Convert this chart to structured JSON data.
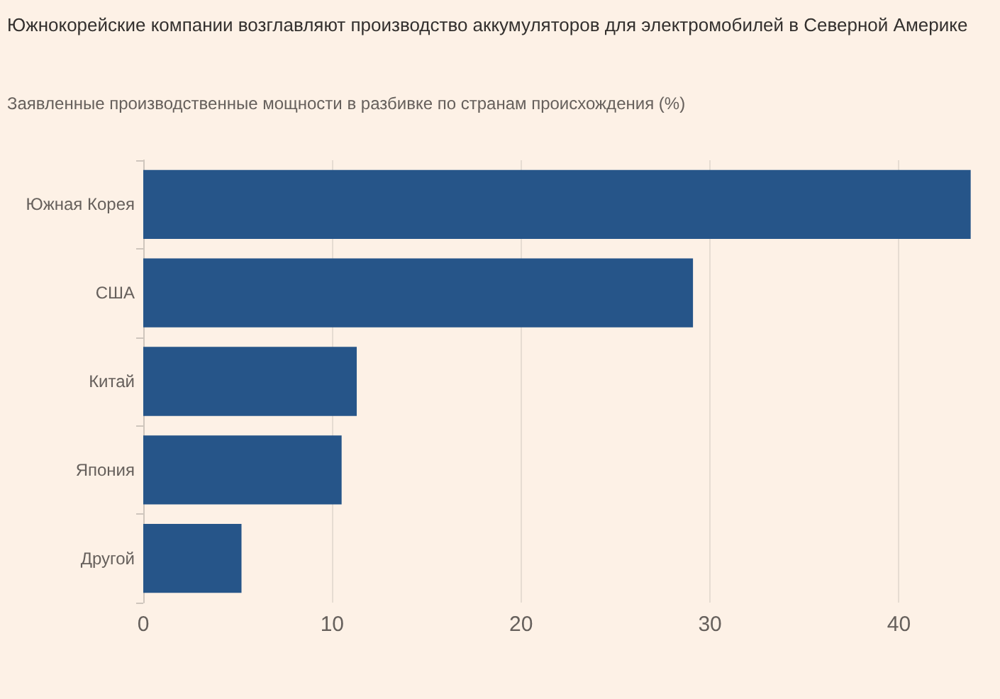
{
  "chart_data": {
    "type": "bar",
    "orientation": "horizontal",
    "title": "Южнокорейские компании возглавляют производство аккумуляторов для электромобилей в Северной Америке",
    "subtitle": "Заявленные производственные мощности в разбивке по странам происхождения (%)",
    "categories": [
      "Южная Корея",
      "США",
      "Китай",
      "Япония",
      "Другой"
    ],
    "values": [
      43.8,
      29.1,
      11.3,
      10.5,
      5.2
    ],
    "color": "#265589",
    "xlim": [
      0,
      44
    ],
    "xticks": [
      0,
      10,
      20,
      30,
      40
    ],
    "grid": "x"
  }
}
